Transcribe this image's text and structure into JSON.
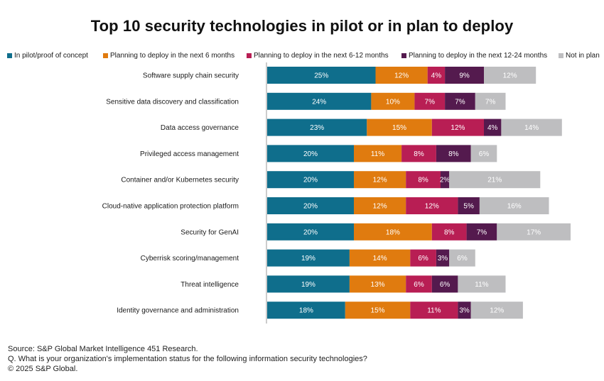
{
  "chart_data": {
    "type": "bar",
    "orientation": "horizontal",
    "stacked": true,
    "title": "Top 10 security technologies in pilot or in plan to deploy",
    "categories": [
      "Software supply chain security",
      "Sensitive data discovery and classification",
      "Data access governance",
      "Privileged access management",
      "Container and/or Kubernetes security",
      "Cloud-native application protection platform",
      "Security for GenAI",
      "Cyberrisk scoring/management",
      "Threat intelligence",
      "Identity governance and administration"
    ],
    "series": [
      {
        "name": "In pilot/proof of concept",
        "color": "#0f6e8c",
        "values": [
          25,
          24,
          23,
          20,
          20,
          20,
          20,
          19,
          19,
          18
        ]
      },
      {
        "name": "Planning to deploy in the next 6 months",
        "color": "#e07b0f",
        "values": [
          12,
          10,
          15,
          11,
          12,
          12,
          18,
          14,
          13,
          15
        ]
      },
      {
        "name": "Planning to deploy in the next 6-12 months",
        "color": "#b81e54",
        "values": [
          4,
          7,
          12,
          8,
          8,
          12,
          8,
          6,
          6,
          11
        ]
      },
      {
        "name": "Planning to deploy in the next 12-24 months",
        "color": "#541a4e",
        "values": [
          9,
          7,
          4,
          8,
          2,
          5,
          7,
          3,
          6,
          3
        ]
      },
      {
        "name": "Not in plan",
        "color": "#bebec0",
        "values": [
          12,
          7,
          14,
          6,
          21,
          16,
          17,
          6,
          11,
          12
        ]
      }
    ],
    "value_suffix": "%",
    "xlim": [
      0,
      70
    ],
    "legend_position": "top",
    "grid": false
  },
  "footer": {
    "source": "Source: S&P Global Market Intelligence 451 Research.",
    "question": "Q. What is your organization's implementation status for the following information security technologies?",
    "copyright": "© 2025 S&P Global."
  }
}
